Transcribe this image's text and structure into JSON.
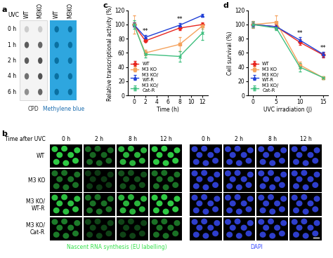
{
  "panels": {
    "a": {
      "label": "a",
      "header": "UVC",
      "columns": [
        "WT",
        "M3KO"
      ],
      "rows": [
        "0 h",
        "1 h",
        "2 h",
        "4 h",
        "6 h"
      ],
      "blots": [
        {
          "caption": "CPD",
          "signal": [
            [
              0.25,
              0.25
            ],
            [
              0.8,
              0.75
            ],
            [
              0.8,
              0.85
            ],
            [
              0.7,
              0.85
            ],
            [
              0.55,
              0.75
            ]
          ]
        },
        {
          "caption": "Methylene blue",
          "signal": [
            [
              0.6,
              0.6
            ],
            [
              0.6,
              0.6
            ],
            [
              0.6,
              0.6
            ],
            [
              0.6,
              0.6
            ],
            [
              0.6,
              0.6
            ]
          ]
        }
      ]
    },
    "b": {
      "label": "b",
      "header": "Time after UVC",
      "columns": [
        "0 h",
        "2 h",
        "8 h",
        "12 h"
      ],
      "rows": [
        "WT",
        "M3 KO",
        "M3 KO/\nWT-R",
        "M3 KO/\nCat-R"
      ],
      "images": [
        {
          "caption": "Nascent RNA synthesis (EU labelling)",
          "color": "#33e04a",
          "signal": [
            [
              0.9,
              0.45,
              0.8,
              0.9
            ],
            [
              0.5,
              0.25,
              0.35,
              0.5
            ],
            [
              0.85,
              0.5,
              0.8,
              0.9
            ],
            [
              0.55,
              0.3,
              0.3,
              0.5
            ]
          ]
        },
        {
          "caption": "DAPI",
          "color": "#3a4dff",
          "signal": [
            [
              0.8,
              0.8,
              0.8,
              0.8
            ],
            [
              0.8,
              0.8,
              0.8,
              0.8
            ],
            [
              0.8,
              0.8,
              0.8,
              0.8
            ],
            [
              0.8,
              0.8,
              0.8,
              0.8
            ]
          ]
        }
      ]
    }
  },
  "chart_data": [
    {
      "type": "line",
      "panel_label": "c",
      "x_label": "Time (h)",
      "y_label": "Relative transcriptional activity (%)",
      "x": [
        0,
        2,
        8,
        12
      ],
      "xlim": [
        -1,
        13
      ],
      "xticks": [
        0,
        2,
        4,
        6,
        8,
        10,
        12
      ],
      "ylim": [
        0,
        120
      ],
      "yticks": [
        0,
        20,
        40,
        60,
        80,
        100,
        120
      ],
      "grid": false,
      "legend": "lower left",
      "annotations": [
        {
          "text": "**",
          "x": 2
        },
        {
          "text": "**",
          "x": 8
        }
      ],
      "series": [
        {
          "name": "WT",
          "color": "#e8251f",
          "marker": "diamond",
          "values": [
            100,
            77,
            95,
            100
          ],
          "errors": [
            3,
            2,
            3,
            3
          ]
        },
        {
          "name": "M3 KO",
          "color": "#f5a25d",
          "marker": "square",
          "values": [
            100,
            60,
            72,
            98
          ],
          "errors": [
            13,
            4,
            10,
            4
          ]
        },
        {
          "name": "M3 KO/\nWT-R",
          "color": "#1f3fd6",
          "marker": "triangle",
          "values": [
            100,
            82,
            99,
            113
          ],
          "errors": [
            3,
            3,
            3,
            2
          ]
        },
        {
          "name": "M3 KO/\nCat-R",
          "color": "#3fbf7f",
          "marker": "x",
          "values": [
            100,
            58,
            55,
            88
          ],
          "errors": [
            6,
            4,
            7,
            10
          ]
        }
      ]
    },
    {
      "type": "line",
      "panel_label": "d",
      "x_label": "UVC irradiation (J)",
      "y_label": "Cell survival (%)",
      "x": [
        0,
        5,
        10,
        15
      ],
      "xlim": [
        -1,
        16
      ],
      "xticks": [
        0,
        5,
        10,
        15
      ],
      "ylim": [
        0,
        120
      ],
      "yticks": [
        0,
        20,
        40,
        60,
        80,
        100,
        120
      ],
      "grid": false,
      "legend": "lower left",
      "annotations": [
        {
          "text": "**",
          "x": 10
        },
        {
          "text": "**",
          "x": 15
        }
      ],
      "series": [
        {
          "name": "WT",
          "color": "#e8251f",
          "marker": "diamond",
          "values": [
            100,
            97,
            75,
            57
          ],
          "errors": [
            4,
            3,
            4,
            3
          ]
        },
        {
          "name": "M3 KO",
          "color": "#f5a25d",
          "marker": "square",
          "values": [
            100,
            103,
            43,
            25
          ],
          "errors": [
            5,
            10,
            5,
            2
          ]
        },
        {
          "name": "M3 KO/\nWT-R",
          "color": "#1f3fd6",
          "marker": "triangle",
          "values": [
            100,
            97,
            78,
            58
          ],
          "errors": [
            4,
            3,
            4,
            3
          ]
        },
        {
          "name": "M3 KO/\nCat-R",
          "color": "#3fbf7f",
          "marker": "x",
          "values": [
            100,
            95,
            40,
            25
          ],
          "errors": [
            4,
            3,
            6,
            2
          ]
        }
      ]
    }
  ]
}
